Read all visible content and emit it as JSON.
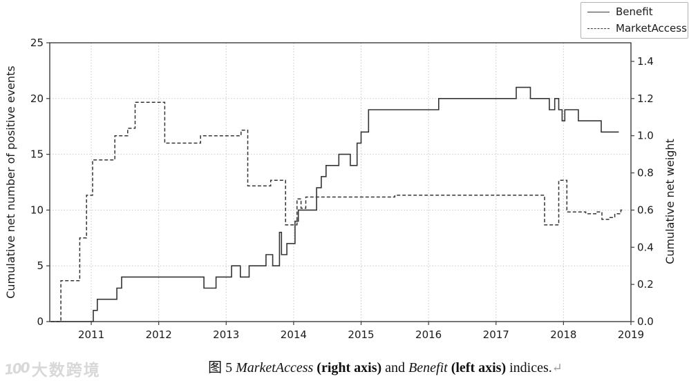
{
  "legend": {
    "items": [
      {
        "label": "Benefit",
        "line_style": "solid"
      },
      {
        "label": "MarketAccess",
        "line_style": "dashed"
      }
    ]
  },
  "caption": {
    "figure_label": "图 5 ",
    "series1": "MarketAccess",
    "series1_axis": " (right axis) ",
    "conjunction": "and ",
    "series2": "Benefit",
    "series2_axis": " (left axis) ",
    "suffix": "indices.",
    "return_mark": "↵"
  },
  "watermark": {
    "mark": "100",
    "text": "大数跨境"
  },
  "chart_data": {
    "type": "line",
    "step": true,
    "title": "",
    "grid": true,
    "legend_position": "upper right outside",
    "x_axis": {
      "label": "",
      "range": [
        2010.385,
        2019
      ],
      "ticks": [
        2011,
        2012,
        2013,
        2014,
        2015,
        2016,
        2017,
        2018,
        2019
      ],
      "gridlines": [
        2011,
        2012,
        2013,
        2014,
        2015,
        2016,
        2017,
        2018
      ]
    },
    "left_axis": {
      "label": "Cumulative net number of positive events",
      "range": [
        0,
        25
      ],
      "ticks": [
        0,
        5,
        10,
        15,
        20,
        25
      ],
      "gridlines": [
        5,
        10,
        15,
        20
      ]
    },
    "right_axis": {
      "label": "Cumulative net weight",
      "range": [
        0,
        1.5
      ],
      "ticks": [
        "0.0",
        "0.2",
        "0.4",
        "0.6",
        "0.8",
        "1.0",
        "1.2",
        "1.4"
      ]
    },
    "series": [
      {
        "name": "Benefit",
        "axis": "left",
        "line_style": "solid",
        "color": "#333333",
        "points": [
          [
            2010.4,
            0
          ],
          [
            2011.03,
            1
          ],
          [
            2011.09,
            2
          ],
          [
            2011.38,
            3
          ],
          [
            2011.45,
            4
          ],
          [
            2012.67,
            3
          ],
          [
            2012.85,
            4
          ],
          [
            2013.08,
            5
          ],
          [
            2013.21,
            4
          ],
          [
            2013.34,
            5
          ],
          [
            2013.59,
            6
          ],
          [
            2013.69,
            5
          ],
          [
            2013.79,
            8
          ],
          [
            2013.82,
            6
          ],
          [
            2013.9,
            7
          ],
          [
            2014.02,
            9
          ],
          [
            2014.07,
            10
          ],
          [
            2014.34,
            12
          ],
          [
            2014.41,
            13
          ],
          [
            2014.48,
            14
          ],
          [
            2014.67,
            15
          ],
          [
            2014.84,
            14
          ],
          [
            2014.94,
            16
          ],
          [
            2015.0,
            17
          ],
          [
            2015.11,
            19
          ],
          [
            2016.15,
            20
          ],
          [
            2017.3,
            21
          ],
          [
            2017.51,
            20
          ],
          [
            2017.79,
            19
          ],
          [
            2017.87,
            20
          ],
          [
            2017.93,
            19
          ],
          [
            2017.98,
            18
          ],
          [
            2018.02,
            19
          ],
          [
            2018.22,
            18
          ],
          [
            2018.56,
            17
          ],
          [
            2018.82,
            17
          ]
        ]
      },
      {
        "name": "MarketAccess",
        "axis": "right",
        "line_style": "dashed",
        "color": "#333333",
        "points": [
          [
            2010.4,
            0
          ],
          [
            2010.55,
            0.22
          ],
          [
            2010.83,
            0.45
          ],
          [
            2010.93,
            0.68
          ],
          [
            2011.02,
            0.87
          ],
          [
            2011.35,
            1.0
          ],
          [
            2011.54,
            1.04
          ],
          [
            2011.65,
            1.18
          ],
          [
            2012.09,
            0.96
          ],
          [
            2012.62,
            1.0
          ],
          [
            2013.22,
            1.03
          ],
          [
            2013.32,
            0.73
          ],
          [
            2013.66,
            0.76
          ],
          [
            2013.88,
            0.52
          ],
          [
            2014.05,
            0.66
          ],
          [
            2014.11,
            0.61
          ],
          [
            2014.18,
            0.67
          ],
          [
            2015.5,
            0.68
          ],
          [
            2017.72,
            0.52
          ],
          [
            2017.93,
            0.76
          ],
          [
            2018.05,
            0.59
          ],
          [
            2018.33,
            0.58
          ],
          [
            2018.48,
            0.59
          ],
          [
            2018.57,
            0.55
          ],
          [
            2018.68,
            0.56
          ],
          [
            2018.76,
            0.58
          ],
          [
            2018.85,
            0.6
          ],
          [
            2018.9,
            0.6
          ]
        ]
      }
    ]
  }
}
